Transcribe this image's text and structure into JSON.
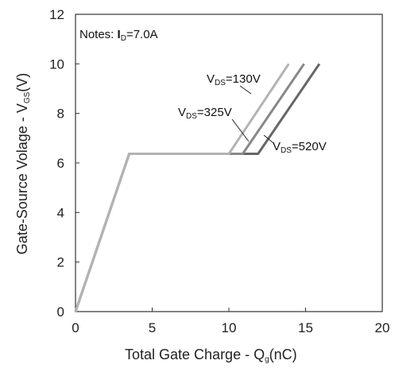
{
  "chart_data": {
    "type": "line",
    "title": "",
    "xlabel": "Total Gate Charge -",
    "xlabel_symbol": "Q",
    "xlabel_symbol_sub": "g",
    "xlabel_unit": "(nC)",
    "ylabel": "Gate-Source Volage -",
    "ylabel_symbol": "V",
    "ylabel_symbol_sub": "GS",
    "ylabel_unit": "(V)",
    "xlim": [
      0,
      20
    ],
    "ylim": [
      0,
      12
    ],
    "x_ticks": [
      "0",
      "5",
      "10",
      "15",
      "20"
    ],
    "y_ticks": [
      "0",
      "2",
      "4",
      "6",
      "8",
      "10",
      "12"
    ],
    "grid": false,
    "note": {
      "prefix": "Notes: ",
      "symbol": "I",
      "sub": "D",
      "value": "=7.0A"
    },
    "series": [
      {
        "name": "V_DS=130V",
        "label_symbol": "V",
        "label_sub": "DS",
        "label_value": "=130V",
        "color": "#b3b3b3",
        "x": [
          0,
          3.5,
          10.0,
          13.9
        ],
        "y": [
          0,
          6.37,
          6.37,
          10.0
        ]
      },
      {
        "name": "V_DS=325V",
        "label_symbol": "V",
        "label_sub": "DS",
        "label_value": "=325V",
        "color": "#888888",
        "x": [
          0,
          3.5,
          10.9,
          14.9
        ],
        "y": [
          0,
          6.37,
          6.37,
          10.0
        ]
      },
      {
        "name": "V_DS=520V",
        "label_symbol": "V",
        "label_sub": "DS",
        "label_value": "=520V",
        "color": "#666666",
        "x": [
          0,
          3.5,
          11.9,
          15.9
        ],
        "y": [
          0,
          6.37,
          6.37,
          10.0
        ]
      }
    ]
  }
}
